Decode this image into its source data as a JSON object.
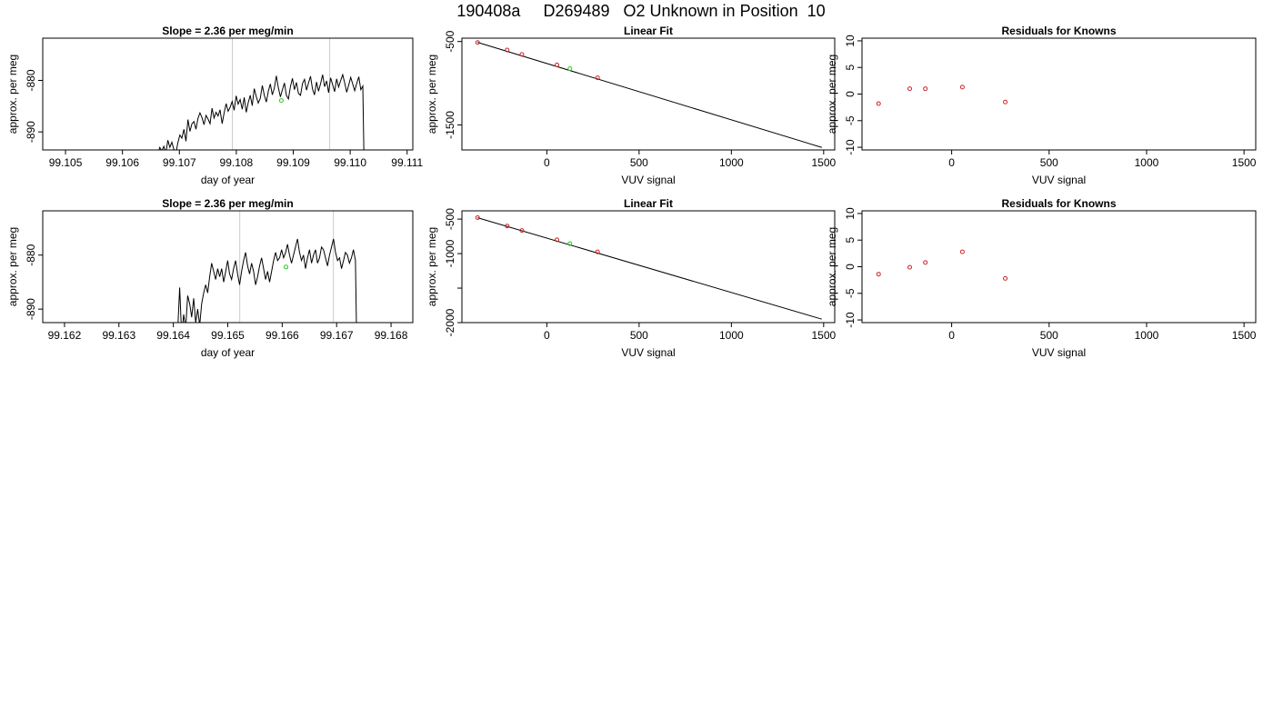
{
  "page_title": "190408a     D269489   O2 Unknown in Position  10",
  "chart_data": [
    {
      "type": "line",
      "title": "Slope =  2.36  per meg/min",
      "xlabel": "day of year",
      "ylabel": "approx. per meg",
      "xlim": [
        99.1046,
        99.1111
      ],
      "ylim": [
        -893.5,
        -871.8
      ],
      "xticks": [
        "99.105",
        "99.106",
        "99.107",
        "99.108",
        "99.109",
        "99.110",
        "99.111"
      ],
      "xtick_values": [
        99.105,
        99.106,
        99.107,
        99.108,
        99.109,
        99.11,
        99.111
      ],
      "yticks": [
        "-880",
        "-890"
      ],
      "ytick_values": [
        -880,
        -890
      ],
      "vlines": [
        99.10793,
        99.10964
      ],
      "x_start": 99.10655,
      "x_step": 3.53e-05,
      "y": [
        -894.6,
        -893.9,
        -894.2,
        -893.0,
        -893.7,
        -892.8,
        -894.1,
        -891.6,
        -893.0,
        -892.0,
        -893.4,
        -894.2,
        -892.1,
        -890.6,
        -891.2,
        -889.5,
        -891.8,
        -887.6,
        -889.9,
        -888.4,
        -888.0,
        -889.5,
        -887.4,
        -886.3,
        -887.2,
        -888.6,
        -886.8,
        -887.5,
        -888.4,
        -885.4,
        -887.3,
        -886.2,
        -886.9,
        -885.7,
        -888.4,
        -886.3,
        -884.5,
        -886.0,
        -885.2,
        -884.1,
        -885.8,
        -883.0,
        -884.6,
        -883.7,
        -885.6,
        -883.3,
        -886.2,
        -884.3,
        -882.9,
        -884.9,
        -881.6,
        -883.1,
        -884.4,
        -883.5,
        -881.0,
        -882.9,
        -884.2,
        -882.1,
        -880.7,
        -882.8,
        -881.5,
        -879.1,
        -881.4,
        -883.2,
        -881.8,
        -880.5,
        -882.9,
        -883.6,
        -881.2,
        -879.6,
        -881.8,
        -880.4,
        -882.5,
        -882.9,
        -880.6,
        -879.8,
        -881.9,
        -880.5,
        -879.2,
        -881.7,
        -882.8,
        -880.3,
        -882.1,
        -880.6,
        -878.9,
        -881.2,
        -880.1,
        -882.4,
        -879.5,
        -880.8,
        -882.2,
        -879.7,
        -881.3,
        -880.0,
        -878.9,
        -880.5,
        -882.3,
        -880.9,
        -879.4,
        -880.7,
        -882.0,
        -880.6,
        -879.3,
        -881.8,
        -881.1,
        -905.0
      ],
      "highlight_point": {
        "x": 99.10879,
        "y": -883.9
      }
    },
    {
      "type": "scatter",
      "title": "Linear Fit",
      "xlabel": "VUV signal",
      "ylabel": "approx. per meg",
      "xlim": [
        -460,
        1560
      ],
      "ylim": [
        -1800,
        -460
      ],
      "xticks": [
        "0",
        "500",
        "1000",
        "1500"
      ],
      "xtick_values": [
        0,
        500,
        1000,
        1500
      ],
      "yticks": [
        "-500",
        "-1500"
      ],
      "ytick_values": [
        -500,
        -1500
      ],
      "fit_line": [
        [
          -375,
          -510
        ],
        [
          1490,
          -1770
        ]
      ],
      "points": {
        "x": [
          -375,
          -215,
          -135,
          55,
          275
        ],
        "y": [
          -512,
          -602,
          -655,
          -780,
          -935
        ]
      },
      "highlight_point": {
        "x": 125,
        "y": -825
      }
    },
    {
      "type": "scatter",
      "title": "Residuals for Knowns",
      "xlabel": "VUV signal",
      "ylabel": "approx. per meg",
      "xlim": [
        -460,
        1560
      ],
      "ylim": [
        -10.5,
        10.5
      ],
      "xticks": [
        "0",
        "500",
        "1000",
        "1500"
      ],
      "xtick_values": [
        0,
        500,
        1000,
        1500
      ],
      "yticks": [
        "10",
        "5",
        "0",
        "-5",
        "-10"
      ],
      "ytick_values": [
        10,
        5,
        0,
        -5,
        -10
      ],
      "points": {
        "x": [
          -375,
          -215,
          -135,
          55,
          275
        ],
        "y": [
          -1.8,
          1.0,
          1.0,
          1.3,
          -1.5
        ]
      }
    },
    {
      "type": "line",
      "title": "Slope =  2.36  per meg/min",
      "xlabel": "day of year",
      "ylabel": "approx. per meg",
      "xlim": [
        99.1616,
        99.1684
      ],
      "ylim": [
        -892.5,
        -871.8
      ],
      "xticks": [
        "99.162",
        "99.163",
        "99.164",
        "99.165",
        "99.166",
        "99.167",
        "99.168"
      ],
      "xtick_values": [
        99.162,
        99.163,
        99.164,
        99.165,
        99.166,
        99.167,
        99.168
      ],
      "yticks": [
        "-880",
        "-890"
      ],
      "ytick_values": [
        -880,
        -890
      ],
      "vlines": [
        99.16522,
        99.16694
      ],
      "x_start": 99.16408,
      "x_step": 3.67e-05,
      "y": [
        -894.0,
        -886.0,
        -895.0,
        -891.0,
        -893.5,
        -887.5,
        -889.0,
        -891.5,
        -888.0,
        -892.5,
        -890.0,
        -893.0,
        -889.0,
        -887.0,
        -885.5,
        -887.0,
        -884.0,
        -881.5,
        -883.0,
        -884.5,
        -882.5,
        -884.0,
        -882.5,
        -885.0,
        -883.0,
        -881.0,
        -883.5,
        -884.5,
        -882.5,
        -881.0,
        -883.5,
        -885.5,
        -883.0,
        -881.0,
        -879.5,
        -882.0,
        -883.5,
        -881.5,
        -883.0,
        -885.5,
        -884.0,
        -882.0,
        -880.5,
        -882.5,
        -884.5,
        -883.0,
        -885.0,
        -883.0,
        -881.0,
        -879.5,
        -881.0,
        -880.5,
        -879.0,
        -880.5,
        -879.5,
        -878.0,
        -880.0,
        -881.5,
        -880.0,
        -878.5,
        -877.0,
        -879.5,
        -881.0,
        -880.0,
        -882.5,
        -880.5,
        -879.0,
        -881.5,
        -880.0,
        -879.0,
        -881.5,
        -880.5,
        -878.5,
        -879.0,
        -880.5,
        -882.0,
        -880.0,
        -878.5,
        -877.0,
        -879.5,
        -881.0,
        -880.5,
        -882.5,
        -881.0,
        -879.5,
        -880.0,
        -881.5,
        -880.5,
        -879.0,
        -881.0,
        -905.0
      ],
      "highlight_point": {
        "x": 99.16607,
        "y": -882.2
      }
    },
    {
      "type": "scatter",
      "title": "Linear Fit",
      "xlabel": "VUV signal",
      "ylabel": "approx. per meg",
      "xlim": [
        -460,
        1560
      ],
      "ylim": [
        -2000,
        -380
      ],
      "xticks": [
        "0",
        "500",
        "1000",
        "1500"
      ],
      "xtick_values": [
        0,
        500,
        1000,
        1500
      ],
      "yticks": [
        "-500",
        "-1000",
        "-2000"
      ],
      "ytick_values": [
        -500,
        -1000,
        -2000
      ],
      "y_minor_ticks": [
        -1500
      ],
      "fit_line": [
        [
          -375,
          -480
        ],
        [
          1490,
          -1950
        ]
      ],
      "points": {
        "x": [
          -375,
          -215,
          -135,
          55,
          275
        ],
        "y": [
          -478,
          -600,
          -665,
          -800,
          -975
        ]
      },
      "highlight_point": {
        "x": 125,
        "y": -855
      }
    },
    {
      "type": "scatter",
      "title": "Residuals for Knowns",
      "xlabel": "VUV signal",
      "ylabel": "approx. per meg",
      "xlim": [
        -460,
        1560
      ],
      "ylim": [
        -10.5,
        10.5
      ],
      "xticks": [
        "0",
        "500",
        "1000",
        "1500"
      ],
      "xtick_values": [
        0,
        500,
        1000,
        1500
      ],
      "yticks": [
        "10",
        "5",
        "0",
        "-5",
        "-10"
      ],
      "ytick_values": [
        10,
        5,
        0,
        -5,
        -10
      ],
      "points": {
        "x": [
          -375,
          -215,
          -135,
          55,
          275
        ],
        "y": [
          -1.4,
          -0.1,
          0.8,
          2.8,
          -2.2
        ]
      }
    }
  ]
}
